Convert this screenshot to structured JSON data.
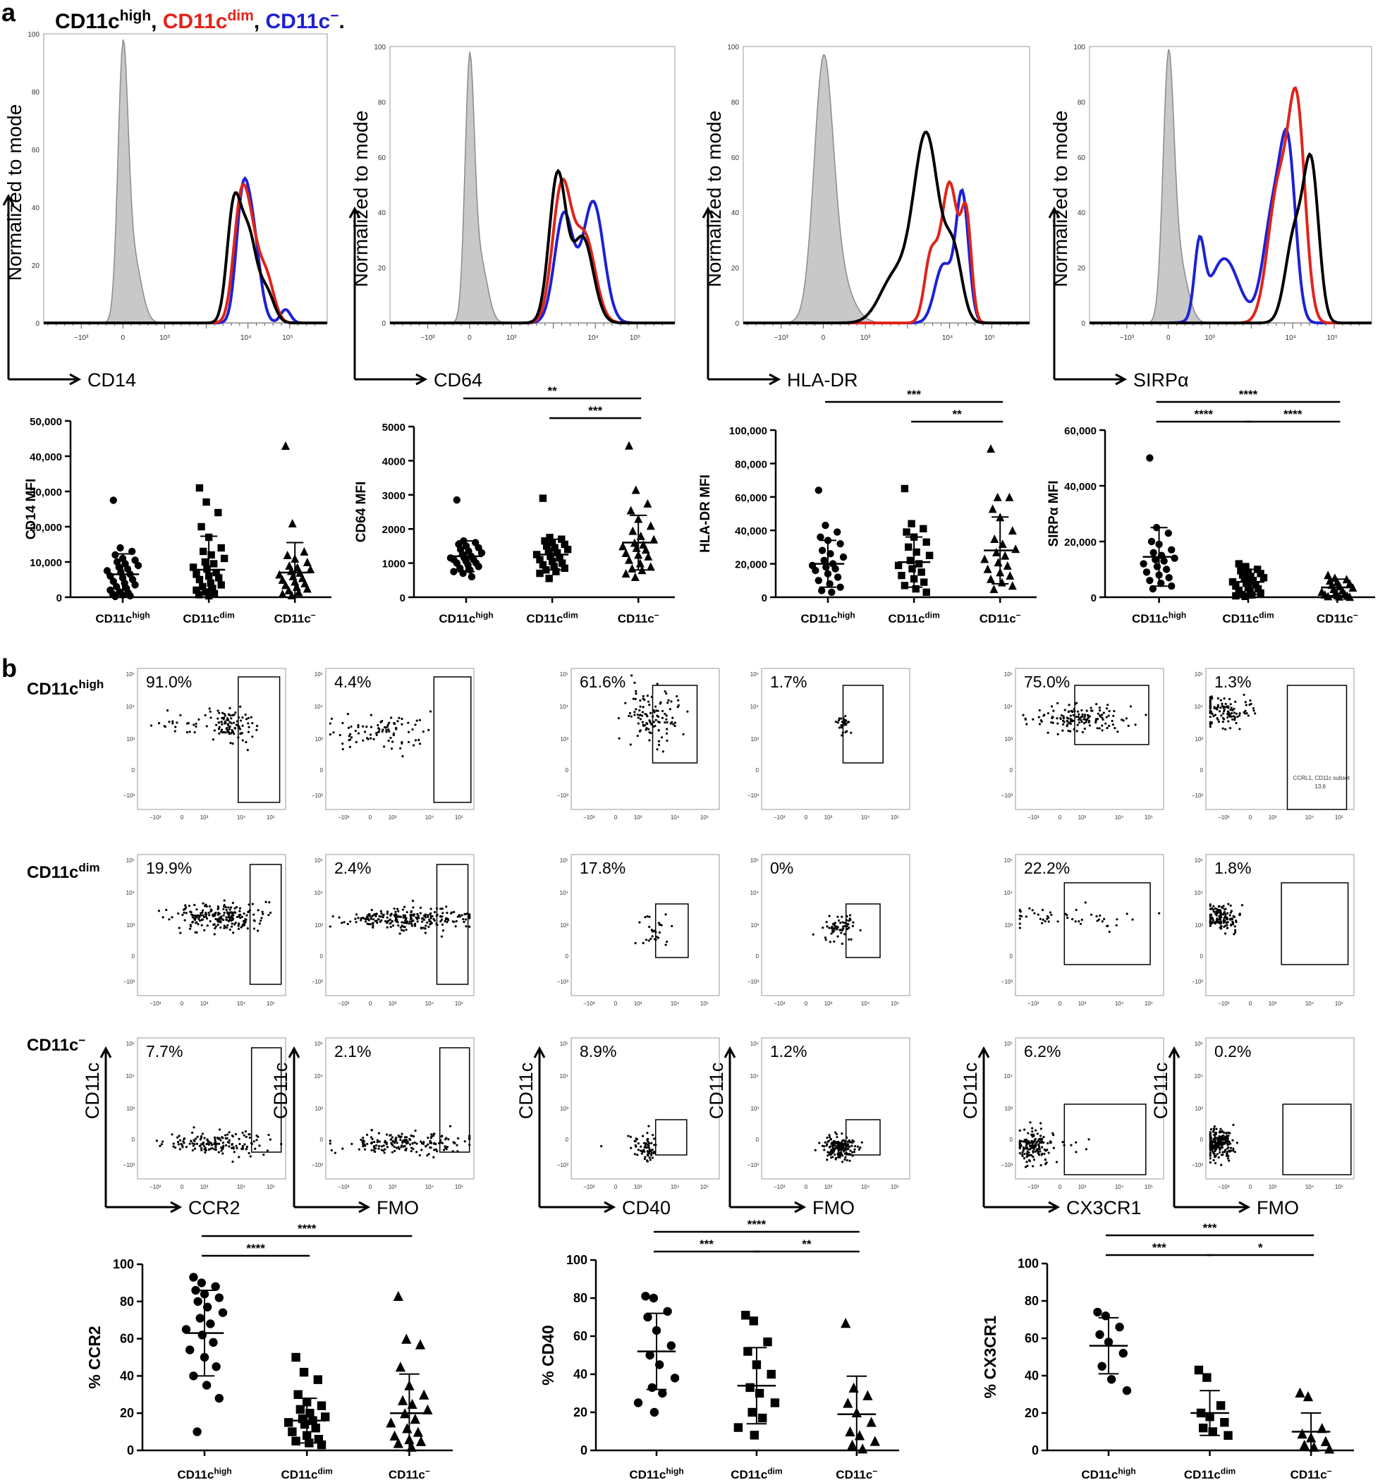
{
  "figure": {
    "panel_a": "a",
    "panel_b": "b",
    "legend": [
      {
        "base": "CD11c",
        "sup": "high",
        "sep": ", ",
        "color": "#000000"
      },
      {
        "base": "CD11c",
        "sup": "dim",
        "sep": ", ",
        "color": "#e0241b"
      },
      {
        "base": "CD11c",
        "sup": "−",
        "sep": ".",
        "color": "#1d22d4"
      }
    ],
    "groups": [
      {
        "base": "CD11c",
        "sup": "high"
      },
      {
        "base": "CD11c",
        "sup": "dim"
      },
      {
        "base": "CD11c",
        "sup": "−"
      }
    ],
    "colors": {
      "high": "#000000",
      "dim": "#e0241b",
      "neg": "#1d22d4",
      "isotype_fill": "#c8c8c8",
      "isotype_line": "#8a8a8a"
    },
    "row_labels": [
      {
        "base": "CD11c",
        "sup": "high"
      },
      {
        "base": "CD11c",
        "sup": "dim"
      },
      {
        "base": "CD11c",
        "sup": "−"
      }
    ],
    "flow_y_label": "CD11c",
    "gate_note": [
      "CCRL1, CD11c subset",
      "13,6"
    ]
  },
  "chart_data": [
    {
      "type": "histogram",
      "id": "hist-cd14",
      "xlabel": "CD14",
      "ylabel": "Normalized to mode",
      "ylim": [
        0,
        100
      ],
      "yticks": [
        0,
        20,
        40,
        60,
        80,
        100
      ],
      "xticks": [
        "−10³",
        "0",
        "10³",
        "10⁴",
        "10⁵"
      ],
      "peaks": {
        "isotype": 98,
        "high": 45,
        "dim": 48,
        "neg": 50
      }
    },
    {
      "type": "histogram",
      "id": "hist-cd64",
      "xlabel": "CD64",
      "ylabel": "Normalized to mode",
      "ylim": [
        0,
        100
      ],
      "yticks": [
        0,
        20,
        40,
        60,
        80,
        100
      ],
      "xticks": [
        "−10³",
        "0",
        "10³",
        "10⁴",
        "10⁵"
      ],
      "peaks": {
        "isotype": 98,
        "high": 55,
        "dim": 52,
        "neg": 44
      }
    },
    {
      "type": "histogram",
      "id": "hist-hladr",
      "xlabel": "HLA-DR",
      "ylabel": "Normalized to mode",
      "ylim": [
        0,
        100
      ],
      "yticks": [
        0,
        20,
        40,
        60,
        80,
        100
      ],
      "xticks": [
        "−10³",
        "0",
        "10³",
        "10⁴",
        "10⁵"
      ],
      "peaks": {
        "isotype": 97,
        "high": 69,
        "dim": 51,
        "neg": 48
      }
    },
    {
      "type": "histogram",
      "id": "hist-sirpa",
      "xlabel": "SIRPα",
      "ylabel": "Normalized to mode",
      "ylim": [
        0,
        100
      ],
      "yticks": [
        0,
        20,
        40,
        60,
        80,
        100
      ],
      "xticks": [
        "−10³",
        "0",
        "10³",
        "10⁴",
        "10⁵"
      ],
      "peaks": {
        "isotype": 99,
        "high": 61,
        "dim": 85,
        "neg": 70
      }
    },
    {
      "type": "scatter",
      "id": "mfi-cd14",
      "ylabel": "CD14 MFI",
      "ylim": [
        0,
        50000
      ],
      "yticks": [
        0,
        10000,
        20000,
        30000,
        40000,
        50000
      ],
      "ytick_labels": [
        "0",
        "10,000",
        "20,000",
        "30,000",
        "40,000",
        "50,000"
      ],
      "series": [
        {
          "mean": 6500,
          "sd": 5800,
          "values": [
            27500,
            14000,
            13000,
            12000,
            11000,
            10500,
            10000,
            9500,
            9000,
            8500,
            8000,
            7500,
            7000,
            6500,
            6000,
            5500,
            5000,
            4500,
            4000,
            3500,
            3000,
            2500,
            2000,
            1500,
            1200,
            900,
            600,
            400,
            200
          ]
        },
        {
          "mean": 7800,
          "sd": 9500,
          "values": [
            31000,
            27000,
            24000,
            20000,
            17000,
            14000,
            13000,
            12000,
            11000,
            10000,
            9500,
            8500,
            8000,
            7000,
            6500,
            6000,
            5500,
            5000,
            4000,
            3500,
            3000,
            2500,
            2000,
            1500,
            1000,
            700,
            400
          ]
        },
        {
          "mean": 7000,
          "sd": 8500,
          "values": [
            43000,
            21000,
            13000,
            12000,
            11000,
            10000,
            9000,
            8500,
            8000,
            7500,
            7000,
            6500,
            6000,
            5500,
            5000,
            4500,
            4000,
            3500,
            3000,
            2500,
            2000,
            1500,
            1000,
            600
          ]
        }
      ],
      "sig": []
    },
    {
      "type": "scatter",
      "id": "mfi-cd64",
      "ylabel": "CD64 MFI",
      "ylim": [
        0,
        5000
      ],
      "yticks": [
        0,
        1000,
        2000,
        3000,
        4000,
        5000
      ],
      "ytick_labels": [
        "0",
        "1000",
        "2000",
        "3000",
        "4000",
        "5000"
      ],
      "series": [
        {
          "mean": 1200,
          "sd": 450,
          "values": [
            2850,
            1650,
            1600,
            1550,
            1500,
            1450,
            1400,
            1350,
            1300,
            1250,
            1200,
            1150,
            1150,
            1100,
            1100,
            1050,
            1000,
            1000,
            950,
            900,
            850,
            800,
            750,
            700,
            600
          ]
        },
        {
          "mean": 1250,
          "sd": 450,
          "values": [
            2900,
            1750,
            1700,
            1650,
            1600,
            1550,
            1500,
            1450,
            1400,
            1350,
            1300,
            1250,
            1200,
            1150,
            1100,
            1050,
            1000,
            950,
            900,
            850,
            800,
            750,
            700,
            550
          ]
        },
        {
          "mean": 1600,
          "sd": 800,
          "values": [
            4450,
            3150,
            2750,
            2550,
            2300,
            2100,
            1950,
            1800,
            1700,
            1600,
            1550,
            1500,
            1450,
            1400,
            1300,
            1250,
            1200,
            1100,
            1000,
            900,
            850,
            800,
            700,
            600
          ]
        }
      ],
      "sig": [
        {
          "from": 1,
          "to": 2,
          "label": "***",
          "level": 1
        },
        {
          "from": 0,
          "to": 2,
          "label": "**",
          "level": 2
        }
      ]
    },
    {
      "type": "scatter",
      "id": "mfi-hladr",
      "ylabel": "HLA-DR MFI",
      "ylim": [
        0,
        100000
      ],
      "yticks": [
        0,
        20000,
        40000,
        60000,
        80000,
        100000
      ],
      "ytick_labels": [
        "0",
        "20,000",
        "40,000",
        "60,000",
        "80,000",
        "100,000"
      ],
      "series": [
        {
          "mean": 20000,
          "sd": 14000,
          "values": [
            64000,
            43000,
            39000,
            36000,
            34000,
            32000,
            28000,
            26000,
            24000,
            22000,
            20000,
            19000,
            18000,
            17000,
            16000,
            14000,
            12000,
            10000,
            8000,
            6000,
            4000,
            3000
          ]
        },
        {
          "mean": 21000,
          "sd": 15000,
          "values": [
            65000,
            44000,
            41000,
            39000,
            36000,
            33000,
            30000,
            27000,
            25000,
            22000,
            20000,
            19000,
            17000,
            15000,
            13000,
            11000,
            9000,
            7000,
            5000,
            3000
          ]
        },
        {
          "mean": 28000,
          "sd": 20000,
          "values": [
            89000,
            60000,
            60000,
            53000,
            48000,
            40000,
            35000,
            32000,
            29000,
            27000,
            25000,
            23000,
            21000,
            19000,
            17000,
            15000,
            13000,
            11000,
            9000,
            7000,
            5000
          ]
        }
      ],
      "sig": [
        {
          "from": 1,
          "to": 2,
          "label": "**",
          "level": 1
        },
        {
          "from": 0,
          "to": 2,
          "label": "***",
          "level": 2
        }
      ]
    },
    {
      "type": "scatter",
      "id": "mfi-sirpa",
      "ylabel": "SIRPα MFI",
      "ylim": [
        0,
        60000
      ],
      "yticks": [
        0,
        20000,
        40000,
        60000
      ],
      "ytick_labels": [
        "0",
        "20,000",
        "40,000",
        "60,000"
      ],
      "series": [
        {
          "mean": 14500,
          "sd": 10500,
          "values": [
            50000,
            25000,
            23000,
            20000,
            19000,
            17000,
            16000,
            15000,
            14000,
            13500,
            13000,
            12000,
            11000,
            10000,
            9000,
            8000,
            7000,
            6000,
            5000,
            4000,
            3000
          ]
        },
        {
          "mean": 5500,
          "sd": 4500,
          "values": [
            12000,
            11000,
            10000,
            9500,
            9000,
            8500,
            8000,
            7500,
            7000,
            6500,
            6000,
            5500,
            5000,
            4500,
            4000,
            3500,
            3000,
            2500,
            2000,
            1500,
            1000,
            800,
            500,
            300
          ]
        },
        {
          "mean": 3500,
          "sd": 3000,
          "values": [
            8000,
            7000,
            6500,
            6000,
            5500,
            5000,
            4500,
            4000,
            3500,
            3000,
            2500,
            2000,
            1500,
            1200,
            1000,
            800,
            600,
            400,
            300,
            200
          ]
        }
      ],
      "sig": [
        {
          "from": 0,
          "to": 1,
          "label": "****",
          "level": 1
        },
        {
          "from": 1,
          "to": 2,
          "label": "****",
          "level": 1
        },
        {
          "from": 0,
          "to": 2,
          "label": "****",
          "level": 2
        }
      ]
    },
    {
      "type": "flow-gates",
      "id": "flow-grid",
      "columns": [
        {
          "marker": "CCR2",
          "xlabel": "CCR2"
        },
        {
          "marker": "CCR2",
          "xlabel": "FMO"
        },
        {
          "marker": "CD40",
          "xlabel": "CD40"
        },
        {
          "marker": "CD40",
          "xlabel": "FMO"
        },
        {
          "marker": "CX3CR1",
          "xlabel": "CX3CR1"
        },
        {
          "marker": "CX3CR1",
          "xlabel": "FMO"
        }
      ],
      "percent": [
        [
          "91.0%",
          "4.4%",
          "61.6%",
          "1.7%",
          "75.0%",
          "1.3%"
        ],
        [
          "19.9%",
          "2.4%",
          "17.8%",
          "0%",
          "22.2%",
          "1.8%"
        ],
        [
          "7.7%",
          "2.1%",
          "8.9%",
          "1.2%",
          "6.2%",
          "0.2%"
        ]
      ],
      "mini_xticks": [
        "−10³",
        "0",
        "10³",
        "10⁴",
        "10⁵"
      ],
      "mini_yticks": [
        "10⁵",
        "10⁴",
        "10³",
        "0",
        "−10³"
      ]
    },
    {
      "type": "scatter",
      "id": "pct-ccr2",
      "ylabel": "% CCR2",
      "ylim": [
        0,
        100
      ],
      "yticks": [
        0,
        20,
        40,
        60,
        80,
        100
      ],
      "ytick_labels": [
        "0",
        "20",
        "40",
        "60",
        "80",
        "100"
      ],
      "series": [
        {
          "mean": 63,
          "sd": 23,
          "values": [
            93,
            90,
            88,
            86,
            84,
            82,
            80,
            77,
            74,
            71,
            68,
            65,
            62,
            58,
            54,
            50,
            45,
            40,
            35,
            28,
            10
          ]
        },
        {
          "mean": 16,
          "sd": 12,
          "values": [
            50,
            42,
            38,
            30,
            26,
            24,
            22,
            20,
            18,
            17,
            16,
            15,
            14,
            12,
            10,
            8,
            6,
            5,
            4,
            3
          ]
        },
        {
          "mean": 20,
          "sd": 21,
          "values": [
            83,
            60,
            57,
            45,
            35,
            30,
            27,
            25,
            22,
            20,
            17,
            15,
            12,
            10,
            8,
            6,
            5,
            4,
            2
          ]
        }
      ],
      "sig": [
        {
          "from": 0,
          "to": 1,
          "label": "****",
          "level": 1
        },
        {
          "from": 0,
          "to": 2,
          "label": "****",
          "level": 2
        }
      ]
    },
    {
      "type": "scatter",
      "id": "pct-cd40",
      "ylabel": "% CD40",
      "ylim": [
        0,
        100
      ],
      "yticks": [
        0,
        20,
        40,
        60,
        80,
        100
      ],
      "ytick_labels": [
        "0",
        "20",
        "40",
        "60",
        "80",
        "100"
      ],
      "series": [
        {
          "mean": 52,
          "sd": 20,
          "values": [
            81,
            80,
            73,
            70,
            63,
            55,
            50,
            45,
            38,
            33,
            30,
            25,
            20
          ]
        },
        {
          "mean": 34,
          "sd": 20,
          "values": [
            71,
            68,
            57,
            52,
            45,
            40,
            33,
            30,
            25,
            20,
            17,
            12,
            8
          ]
        },
        {
          "mean": 19,
          "sd": 20,
          "values": [
            67,
            33,
            29,
            25,
            20,
            15,
            10,
            8,
            5,
            3,
            1
          ]
        }
      ],
      "sig": [
        {
          "from": 0,
          "to": 1,
          "label": "***",
          "level": 1
        },
        {
          "from": 1,
          "to": 2,
          "label": "**",
          "level": 1
        },
        {
          "from": 0,
          "to": 2,
          "label": "****",
          "level": 2
        }
      ]
    },
    {
      "type": "scatter",
      "id": "pct-cx3cr1",
      "ylabel": "% CX3CR1",
      "ylim": [
        0,
        100
      ],
      "yticks": [
        0,
        20,
        40,
        60,
        80,
        100
      ],
      "ytick_labels": [
        "0",
        "20",
        "40",
        "60",
        "80",
        "100"
      ],
      "series": [
        {
          "mean": 56,
          "sd": 15,
          "values": [
            74,
            72,
            66,
            62,
            58,
            52,
            45,
            38,
            32
          ]
        },
        {
          "mean": 20,
          "sd": 12,
          "values": [
            43,
            39,
            24,
            20,
            18,
            15,
            12,
            10,
            8
          ]
        },
        {
          "mean": 10,
          "sd": 10,
          "values": [
            31,
            29,
            12,
            9,
            7,
            5,
            3,
            2,
            1
          ]
        }
      ],
      "sig": [
        {
          "from": 0,
          "to": 1,
          "label": "***",
          "level": 1
        },
        {
          "from": 1,
          "to": 2,
          "label": "*",
          "level": 1
        },
        {
          "from": 0,
          "to": 2,
          "label": "***",
          "level": 2
        }
      ]
    }
  ]
}
